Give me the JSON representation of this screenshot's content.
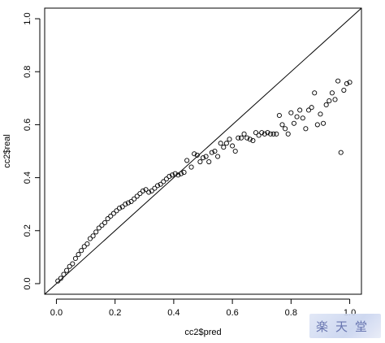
{
  "chart_data": {
    "type": "scatter",
    "title": "",
    "xlabel": "cc2$pred",
    "ylabel": "cc2$real",
    "xlim": [
      -0.04,
      1.04
    ],
    "ylim": [
      -0.04,
      1.04
    ],
    "xticks": [
      0.0,
      0.2,
      0.4,
      0.6,
      0.8,
      1.0
    ],
    "yticks": [
      0.0,
      0.2,
      0.4,
      0.6,
      0.8,
      1.0
    ],
    "xtick_labels": [
      "0.0",
      "0.2",
      "0.4",
      "0.6",
      "0.8",
      "1.0"
    ],
    "ytick_labels": [
      "0.0",
      "0.2",
      "0.4",
      "0.6",
      "0.8",
      "1.0"
    ],
    "reference_line": {
      "intercept": 0,
      "slope": 1
    },
    "grid": false,
    "legend": "none",
    "marker": "open-circle",
    "points": [
      [
        0.005,
        0.01
      ],
      [
        0.015,
        0.02
      ],
      [
        0.025,
        0.035
      ],
      [
        0.035,
        0.05
      ],
      [
        0.045,
        0.065
      ],
      [
        0.055,
        0.075
      ],
      [
        0.065,
        0.095
      ],
      [
        0.075,
        0.11
      ],
      [
        0.085,
        0.125
      ],
      [
        0.095,
        0.14
      ],
      [
        0.105,
        0.15
      ],
      [
        0.115,
        0.17
      ],
      [
        0.125,
        0.18
      ],
      [
        0.135,
        0.195
      ],
      [
        0.145,
        0.21
      ],
      [
        0.155,
        0.22
      ],
      [
        0.165,
        0.23
      ],
      [
        0.175,
        0.245
      ],
      [
        0.185,
        0.255
      ],
      [
        0.195,
        0.265
      ],
      [
        0.205,
        0.275
      ],
      [
        0.215,
        0.285
      ],
      [
        0.225,
        0.29
      ],
      [
        0.235,
        0.3
      ],
      [
        0.245,
        0.305
      ],
      [
        0.255,
        0.31
      ],
      [
        0.265,
        0.32
      ],
      [
        0.275,
        0.33
      ],
      [
        0.285,
        0.34
      ],
      [
        0.295,
        0.35
      ],
      [
        0.305,
        0.355
      ],
      [
        0.315,
        0.345
      ],
      [
        0.325,
        0.35
      ],
      [
        0.335,
        0.36
      ],
      [
        0.345,
        0.37
      ],
      [
        0.355,
        0.375
      ],
      [
        0.365,
        0.385
      ],
      [
        0.375,
        0.395
      ],
      [
        0.385,
        0.405
      ],
      [
        0.395,
        0.41
      ],
      [
        0.405,
        0.415
      ],
      [
        0.415,
        0.41
      ],
      [
        0.425,
        0.415
      ],
      [
        0.435,
        0.42
      ],
      [
        0.445,
        0.465
      ],
      [
        0.46,
        0.44
      ],
      [
        0.47,
        0.49
      ],
      [
        0.48,
        0.485
      ],
      [
        0.49,
        0.46
      ],
      [
        0.5,
        0.475
      ],
      [
        0.51,
        0.48
      ],
      [
        0.52,
        0.46
      ],
      [
        0.53,
        0.495
      ],
      [
        0.54,
        0.5
      ],
      [
        0.55,
        0.48
      ],
      [
        0.56,
        0.53
      ],
      [
        0.57,
        0.515
      ],
      [
        0.58,
        0.53
      ],
      [
        0.59,
        0.545
      ],
      [
        0.6,
        0.52
      ],
      [
        0.61,
        0.5
      ],
      [
        0.62,
        0.55
      ],
      [
        0.63,
        0.55
      ],
      [
        0.64,
        0.565
      ],
      [
        0.65,
        0.55
      ],
      [
        0.66,
        0.545
      ],
      [
        0.67,
        0.54
      ],
      [
        0.68,
        0.57
      ],
      [
        0.69,
        0.56
      ],
      [
        0.7,
        0.57
      ],
      [
        0.71,
        0.565
      ],
      [
        0.72,
        0.57
      ],
      [
        0.73,
        0.565
      ],
      [
        0.74,
        0.565
      ],
      [
        0.75,
        0.565
      ],
      [
        0.76,
        0.635
      ],
      [
        0.77,
        0.6
      ],
      [
        0.78,
        0.585
      ],
      [
        0.79,
        0.565
      ],
      [
        0.8,
        0.645
      ],
      [
        0.81,
        0.605
      ],
      [
        0.82,
        0.63
      ],
      [
        0.83,
        0.655
      ],
      [
        0.84,
        0.625
      ],
      [
        0.85,
        0.585
      ],
      [
        0.86,
        0.655
      ],
      [
        0.87,
        0.665
      ],
      [
        0.88,
        0.72
      ],
      [
        0.89,
        0.6
      ],
      [
        0.9,
        0.64
      ],
      [
        0.91,
        0.605
      ],
      [
        0.92,
        0.675
      ],
      [
        0.93,
        0.69
      ],
      [
        0.94,
        0.72
      ],
      [
        0.95,
        0.695
      ],
      [
        0.96,
        0.765
      ],
      [
        0.97,
        0.495
      ],
      [
        0.98,
        0.73
      ],
      [
        0.99,
        0.755
      ],
      [
        1.0,
        0.76
      ]
    ]
  },
  "watermark": {
    "text": "楽天堂",
    "color": "#5867a8"
  }
}
